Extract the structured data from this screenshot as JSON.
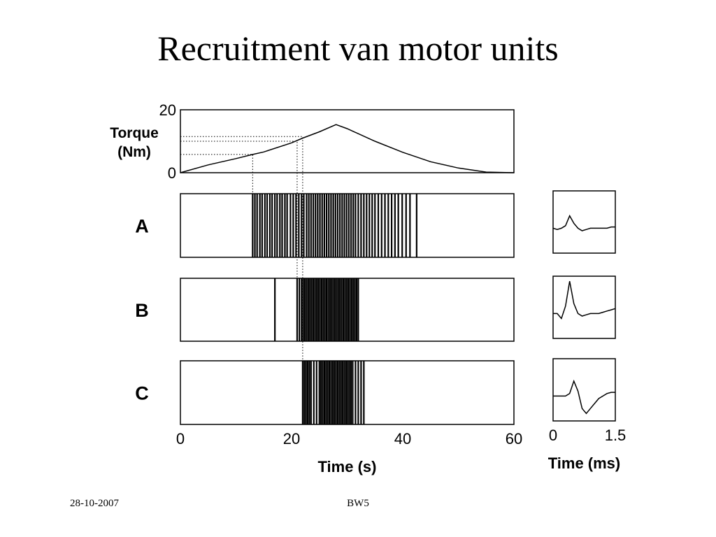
{
  "title": "Recruitment van motor units",
  "footer": {
    "date": "28-10-2007",
    "code": "BW5"
  },
  "chart_data": [
    {
      "type": "line",
      "ylabel": [
        "Torque",
        "(Nm)"
      ],
      "ylim": [
        0,
        20
      ],
      "yticks": [
        0,
        20
      ],
      "xlim": [
        0,
        60
      ],
      "x": [
        0,
        5,
        10,
        13,
        15,
        20,
        22,
        25,
        28,
        30,
        35,
        40,
        45,
        50,
        55,
        60
      ],
      "values": [
        0,
        2.5,
        4.5,
        5.8,
        6.6,
        9.5,
        11,
        13,
        15.3,
        14,
        10,
        6.5,
        3.5,
        1.5,
        0.2,
        0
      ],
      "thresholds": [
        {
          "x": 13,
          "y": 5.8
        },
        {
          "x": 21,
          "y": 10
        },
        {
          "x": 22,
          "y": 11.5
        }
      ],
      "color": "#000000"
    },
    {
      "type": "raster",
      "label": "A",
      "xlim": [
        0,
        60
      ],
      "color": "#000000",
      "spike_times": [
        13.0,
        13.4,
        13.8,
        14.3,
        14.7,
        15.2,
        15.6,
        16.1,
        16.5,
        17.0,
        17.4,
        17.9,
        18.3,
        18.8,
        19.2,
        19.8,
        20.3,
        20.8,
        21.3,
        21.8,
        22.2,
        22.7,
        23.1,
        23.5,
        23.9,
        24.3,
        24.7,
        25.1,
        25.5,
        25.9,
        26.3,
        26.7,
        27.1,
        27.5,
        27.9,
        28.3,
        28.7,
        29.1,
        29.5,
        29.9,
        30.3,
        30.7,
        31.1,
        31.5,
        32.0,
        32.5,
        33.0,
        33.5,
        34.0,
        34.5,
        35.0,
        35.6,
        36.2,
        36.8,
        37.4,
        38.0,
        38.6,
        39.2,
        39.9,
        40.6,
        41.3,
        42.5
      ]
    },
    {
      "type": "raster",
      "label": "B",
      "xlim": [
        0,
        60
      ],
      "color": "#000000",
      "spike_times": [
        17.0,
        21.0,
        21.4,
        21.8,
        22.1,
        22.4,
        22.7,
        23.0,
        23.3,
        23.6,
        23.9,
        24.2,
        24.5,
        24.8,
        25.1,
        25.4,
        25.7,
        26.0,
        26.3,
        26.6,
        26.9,
        27.2,
        27.5,
        27.8,
        28.1,
        28.4,
        28.7,
        29.0,
        29.3,
        29.6,
        29.9,
        30.2,
        30.5,
        30.8,
        31.1,
        31.4,
        31.7,
        32.0
      ]
    },
    {
      "type": "raster",
      "label": "C",
      "xlim": [
        0,
        60
      ],
      "xticks": [
        0,
        20,
        40,
        60
      ],
      "xlabel": "Time (s)",
      "color": "#000000",
      "spike_times": [
        22.0,
        22.3,
        22.6,
        22.9,
        23.2,
        23.5,
        24.0,
        24.5,
        25.0,
        25.3,
        25.6,
        25.9,
        26.2,
        26.5,
        26.8,
        27.1,
        27.4,
        27.7,
        28.0,
        28.3,
        28.6,
        28.9,
        29.2,
        29.5,
        29.8,
        30.1,
        30.4,
        30.7,
        31.0,
        31.5,
        32.0,
        32.5,
        33.0
      ]
    },
    {
      "type": "waveform",
      "xlim": [
        0,
        1.5
      ],
      "ylim": [
        -1,
        1.5
      ],
      "color": "#000000",
      "x": [
        0,
        0.1,
        0.2,
        0.3,
        0.4,
        0.5,
        0.6,
        0.7,
        0.8,
        0.9,
        1.0,
        1.1,
        1.2,
        1.3,
        1.4,
        1.5
      ],
      "values": [
        0,
        -0.05,
        0,
        0.1,
        0.5,
        0.2,
        0,
        -0.1,
        -0.05,
        0,
        0,
        0,
        0,
        0,
        0.05,
        0.05
      ]
    },
    {
      "type": "waveform",
      "xlim": [
        0,
        1.5
      ],
      "ylim": [
        -1,
        1.5
      ],
      "color": "#000000",
      "x": [
        0,
        0.1,
        0.2,
        0.3,
        0.4,
        0.5,
        0.6,
        0.7,
        0.8,
        0.9,
        1.0,
        1.1,
        1.2,
        1.3,
        1.4,
        1.5
      ],
      "values": [
        0,
        0,
        -0.2,
        0.3,
        1.3,
        0.4,
        0,
        -0.1,
        -0.05,
        0,
        0,
        0,
        0.05,
        0.1,
        0.15,
        0.2
      ]
    },
    {
      "type": "waveform",
      "xlim": [
        0,
        1.5
      ],
      "ylim": [
        -1,
        1.5
      ],
      "xticks": [
        0,
        1.5
      ],
      "xlabel": "Time (ms)",
      "color": "#000000",
      "x": [
        0,
        0.1,
        0.2,
        0.3,
        0.4,
        0.5,
        0.6,
        0.7,
        0.8,
        0.9,
        1.0,
        1.1,
        1.2,
        1.3,
        1.4,
        1.5
      ],
      "values": [
        0,
        0,
        0,
        0,
        0.1,
        0.6,
        0.2,
        -0.5,
        -0.7,
        -0.5,
        -0.3,
        -0.1,
        0,
        0.1,
        0.15,
        0.15
      ]
    }
  ]
}
